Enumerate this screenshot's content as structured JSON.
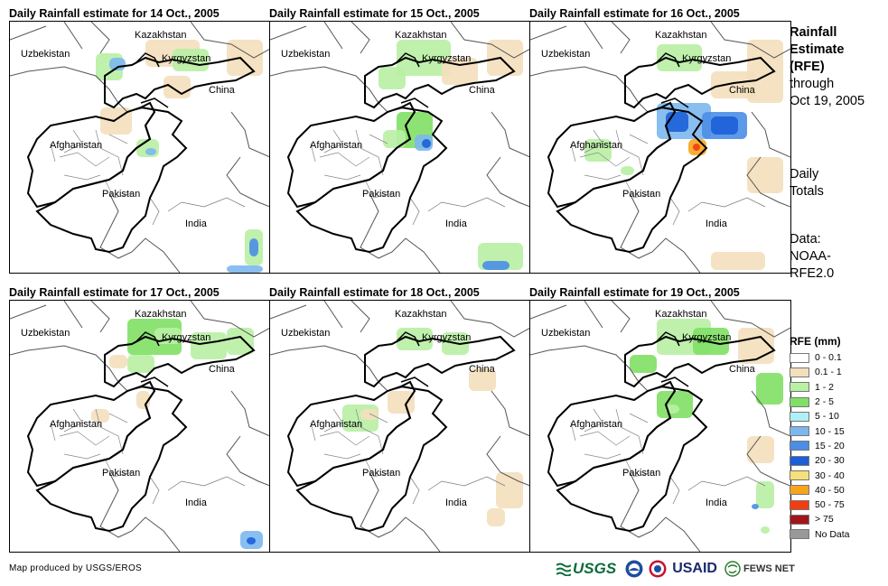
{
  "panels": [
    {
      "title": "Daily Rainfall estimate for 14 Oct., 2005"
    },
    {
      "title": "Daily Rainfall estimate for 15 Oct., 2005"
    },
    {
      "title": "Daily Rainfall estimate for 16 Oct., 2005"
    },
    {
      "title": "Daily Rainfall estimate for 17 Oct., 2005"
    },
    {
      "title": "Daily Rainfall estimate for 18 Oct., 2005"
    },
    {
      "title": "Daily Rainfall estimate for 19 Oct., 2005"
    }
  ],
  "country_labels": {
    "kazakhstan": "Kazakhstan",
    "uzbekistan": "Uzbekistan",
    "kyrgyzstan": "Kyrgyzstan",
    "china": "China",
    "afghanistan": "Afghanistan",
    "pakistan": "Pakistan",
    "india": "India"
  },
  "sidebar": {
    "title_line1": "Rainfall",
    "title_line2": "Estimate",
    "title_line3": "(RFE)",
    "through_line1": "through",
    "through_line2": "Oct 19, 2005",
    "daily_line1": "Daily",
    "daily_line2": "Totals",
    "data_line1": "Data:",
    "data_line2": "NOAA-",
    "data_line3": "RFE2.0"
  },
  "legend": {
    "title": "RFE (mm)",
    "items": [
      {
        "label": "0 - 0.1",
        "color": "#ffffff"
      },
      {
        "label": "0.1 - 1",
        "color": "#f3dfbc"
      },
      {
        "label": "1 - 2",
        "color": "#b8f0a4"
      },
      {
        "label": "2 - 5",
        "color": "#7fe065"
      },
      {
        "label": "5 - 10",
        "color": "#aef0f5"
      },
      {
        "label": "10 - 15",
        "color": "#7cb7ee"
      },
      {
        "label": "15 - 20",
        "color": "#4a8ee6"
      },
      {
        "label": "20 - 30",
        "color": "#1c5fd8"
      },
      {
        "label": "30 - 40",
        "color": "#f5e07a"
      },
      {
        "label": "40 - 50",
        "color": "#f7a51c"
      },
      {
        "label": "50 - 75",
        "color": "#f23d10"
      },
      {
        "label": "> 75",
        "color": "#a0161c"
      },
      {
        "label": "No Data",
        "color": "#999999"
      }
    ]
  },
  "footer": {
    "credit": "Map produced by USGS/EROS",
    "usgs": "USGS",
    "usaid": "USAID",
    "fews": "FEWS NET"
  }
}
